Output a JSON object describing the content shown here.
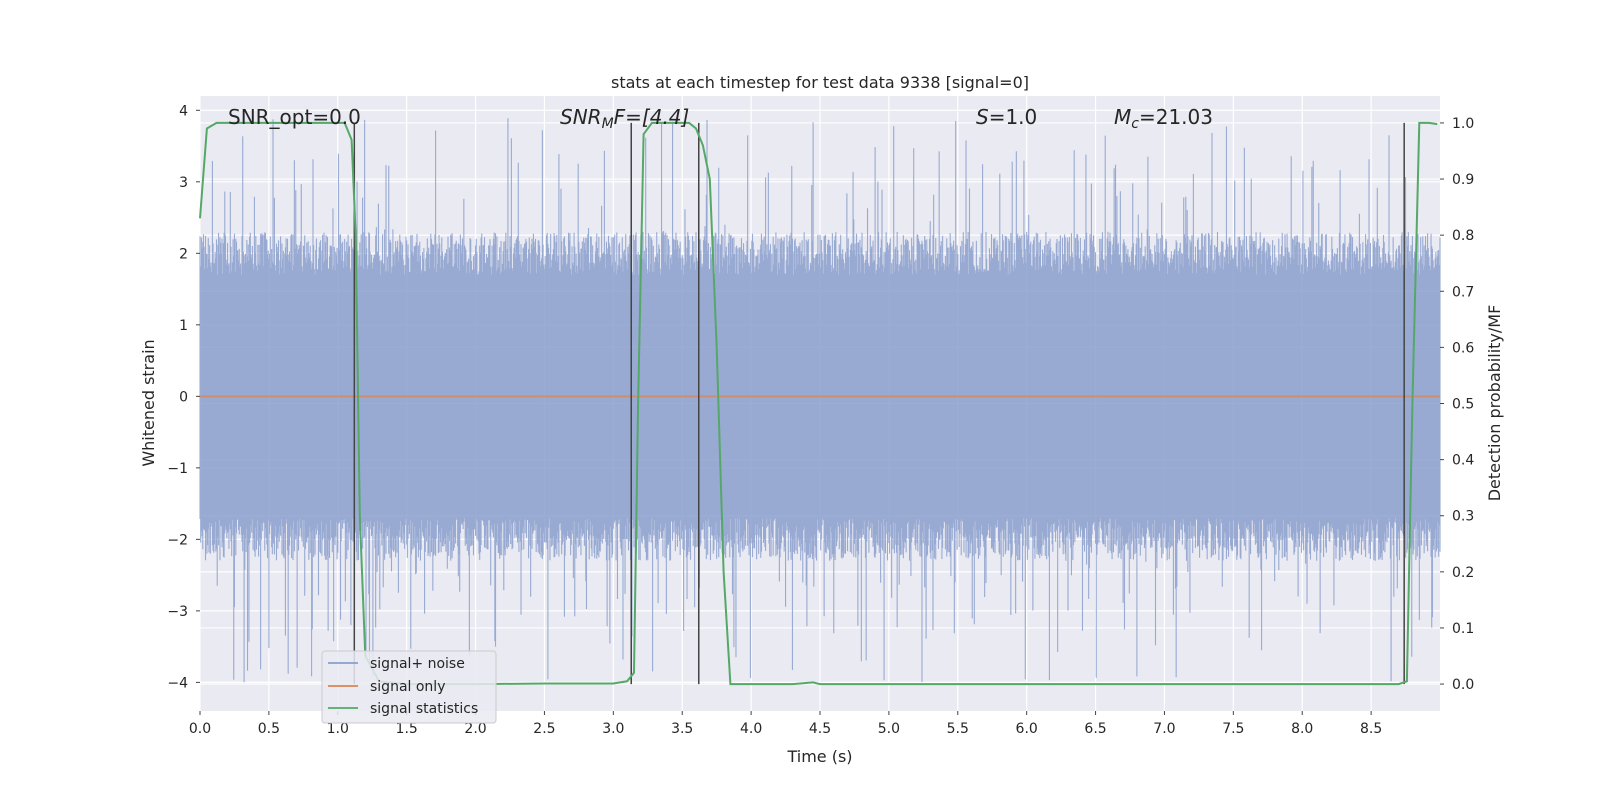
{
  "chart_data": {
    "type": "line",
    "title": "stats at each timestep for test data 9338 [signal=0]",
    "xlabel": "Time (s)",
    "ylabel": "Whitened strain",
    "ylabel_right": "Detection probability/MF",
    "xlim": [
      0.0,
      9.0
    ],
    "ylim": [
      -4.4,
      4.2
    ],
    "ylim_right": [
      -0.048,
      1.048
    ],
    "x_ticks": [
      0.0,
      0.5,
      1.0,
      1.5,
      2.0,
      2.5,
      3.0,
      3.5,
      4.0,
      4.5,
      5.0,
      5.5,
      6.0,
      6.5,
      7.0,
      7.5,
      8.0,
      8.5
    ],
    "x_tick_labels": [
      "0.0",
      "0.5",
      "1.0",
      "1.5",
      "2.0",
      "2.5",
      "3.0",
      "3.5",
      "4.0",
      "4.5",
      "5.0",
      "5.5",
      "6.0",
      "6.5",
      "7.0",
      "7.5",
      "8.0",
      "8.5"
    ],
    "y_ticks": [
      -4,
      -3,
      -2,
      -1,
      0,
      1,
      2,
      3,
      4
    ],
    "y_tick_labels": [
      "−4",
      "−3",
      "−2",
      "−1",
      "0",
      "1",
      "2",
      "3",
      "4"
    ],
    "y_right_ticks": [
      0.0,
      0.1,
      0.2,
      0.3,
      0.4,
      0.5,
      0.6,
      0.7,
      0.8,
      0.9,
      1.0
    ],
    "y_right_tick_labels": [
      "0.0",
      "0.1",
      "0.2",
      "0.3",
      "0.4",
      "0.5",
      "0.6",
      "0.7",
      "0.8",
      "0.9",
      "1.0"
    ],
    "grid": true,
    "annotations": {
      "snr_opt": "SNR_opt=0.0",
      "snr_mf_sym": "SNR",
      "snr_mf_sub": "M",
      "snr_mf_rest": "F=[4.4]",
      "s_sym": "S",
      "s_rest": "=1.0",
      "mc_sym": "M",
      "mc_sub": "c",
      "mc_rest": "=21.03"
    },
    "legend": {
      "placement": "lower-left",
      "entries": [
        {
          "label": "signal+ noise",
          "color": "#8a9fcc"
        },
        {
          "label": "signal only",
          "color": "#dd8452"
        },
        {
          "label": "signal statistics",
          "color": "#55a868"
        }
      ]
    },
    "series": [
      {
        "name": "signal+ noise",
        "axis": "left",
        "kind": "noise-band",
        "color": "#8a9fcc",
        "x_range": [
          0.0,
          9.0
        ],
        "typical_upper": 2.0,
        "typical_lower": -2.0,
        "peak_max": 3.9,
        "peak_min": -4.0
      },
      {
        "name": "signal only",
        "axis": "left",
        "color": "#dd8452",
        "x": [
          0.0,
          9.0
        ],
        "y": [
          0.0,
          0.0
        ]
      },
      {
        "name": "signal statistics",
        "axis": "right",
        "color": "#55a868",
        "x": [
          0.0,
          0.05,
          0.12,
          0.3,
          0.6,
          0.9,
          1.0,
          1.05,
          1.1,
          1.13,
          1.16,
          1.2,
          1.3,
          1.5,
          2.0,
          2.5,
          3.0,
          3.1,
          3.15,
          3.18,
          3.22,
          3.28,
          3.35,
          3.45,
          3.55,
          3.6,
          3.65,
          3.7,
          3.75,
          3.8,
          3.85,
          4.0,
          4.3,
          4.45,
          4.5,
          5.0,
          6.0,
          7.0,
          8.0,
          8.5,
          8.7,
          8.76,
          8.8,
          8.85,
          8.92,
          8.98
        ],
        "y": [
          0.83,
          0.99,
          1.0,
          1.0,
          1.0,
          1.0,
          1.0,
          1.0,
          0.97,
          0.8,
          0.3,
          0.05,
          0.005,
          0.0,
          0.0,
          0.001,
          0.001,
          0.005,
          0.02,
          0.5,
          0.98,
          1.0,
          1.0,
          1.0,
          1.0,
          0.99,
          0.96,
          0.9,
          0.6,
          0.2,
          0.0,
          0.0,
          0.0,
          0.003,
          0.0,
          0.0,
          0.0,
          0.0,
          0.0,
          0.0,
          0.0,
          0.005,
          0.5,
          1.0,
          1.0,
          0.998
        ]
      }
    ],
    "vertical_markers": {
      "color": "#444444",
      "x": [
        1.12,
        3.13,
        3.62,
        8.74
      ]
    }
  }
}
